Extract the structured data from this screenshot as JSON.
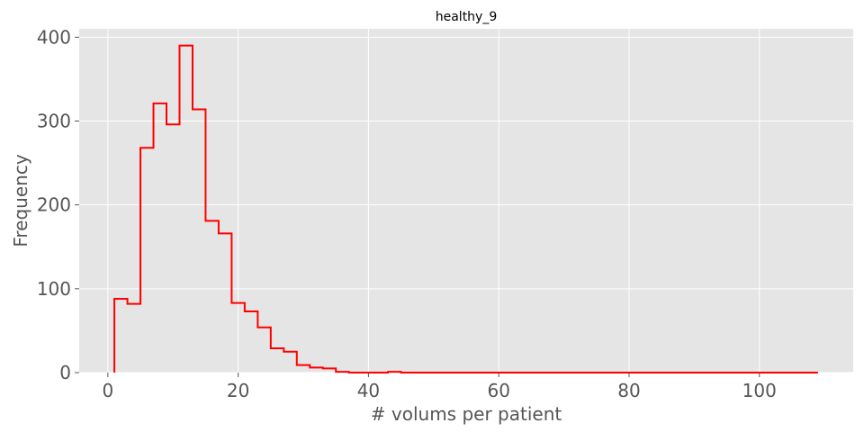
{
  "chart_data": {
    "type": "histogram",
    "title": "healthy_9",
    "xlabel": "# volums per patient",
    "ylabel": "Frequency",
    "xlim": [
      -4.4,
      114.4
    ],
    "ylim": [
      0,
      410
    ],
    "x_ticks": [
      0,
      20,
      40,
      60,
      80,
      100
    ],
    "y_ticks": [
      0,
      100,
      200,
      300,
      400
    ],
    "grid": true,
    "step_color": "#ff0000",
    "plot_background": "#e5e5e5",
    "bin_width": 2,
    "bin_start": 1,
    "bin_end": 109,
    "counts": [
      88,
      82,
      268,
      321,
      296,
      390,
      314,
      181,
      166,
      83,
      73,
      54,
      29,
      25,
      9,
      6,
      5,
      1,
      0,
      0,
      0,
      1,
      0,
      0,
      0,
      0,
      0,
      0,
      0,
      0,
      0,
      0,
      0,
      0,
      0,
      0,
      0,
      0,
      0,
      0,
      0,
      0,
      0,
      0,
      0,
      0,
      0,
      0,
      0,
      0,
      0,
      0,
      0,
      0
    ]
  }
}
